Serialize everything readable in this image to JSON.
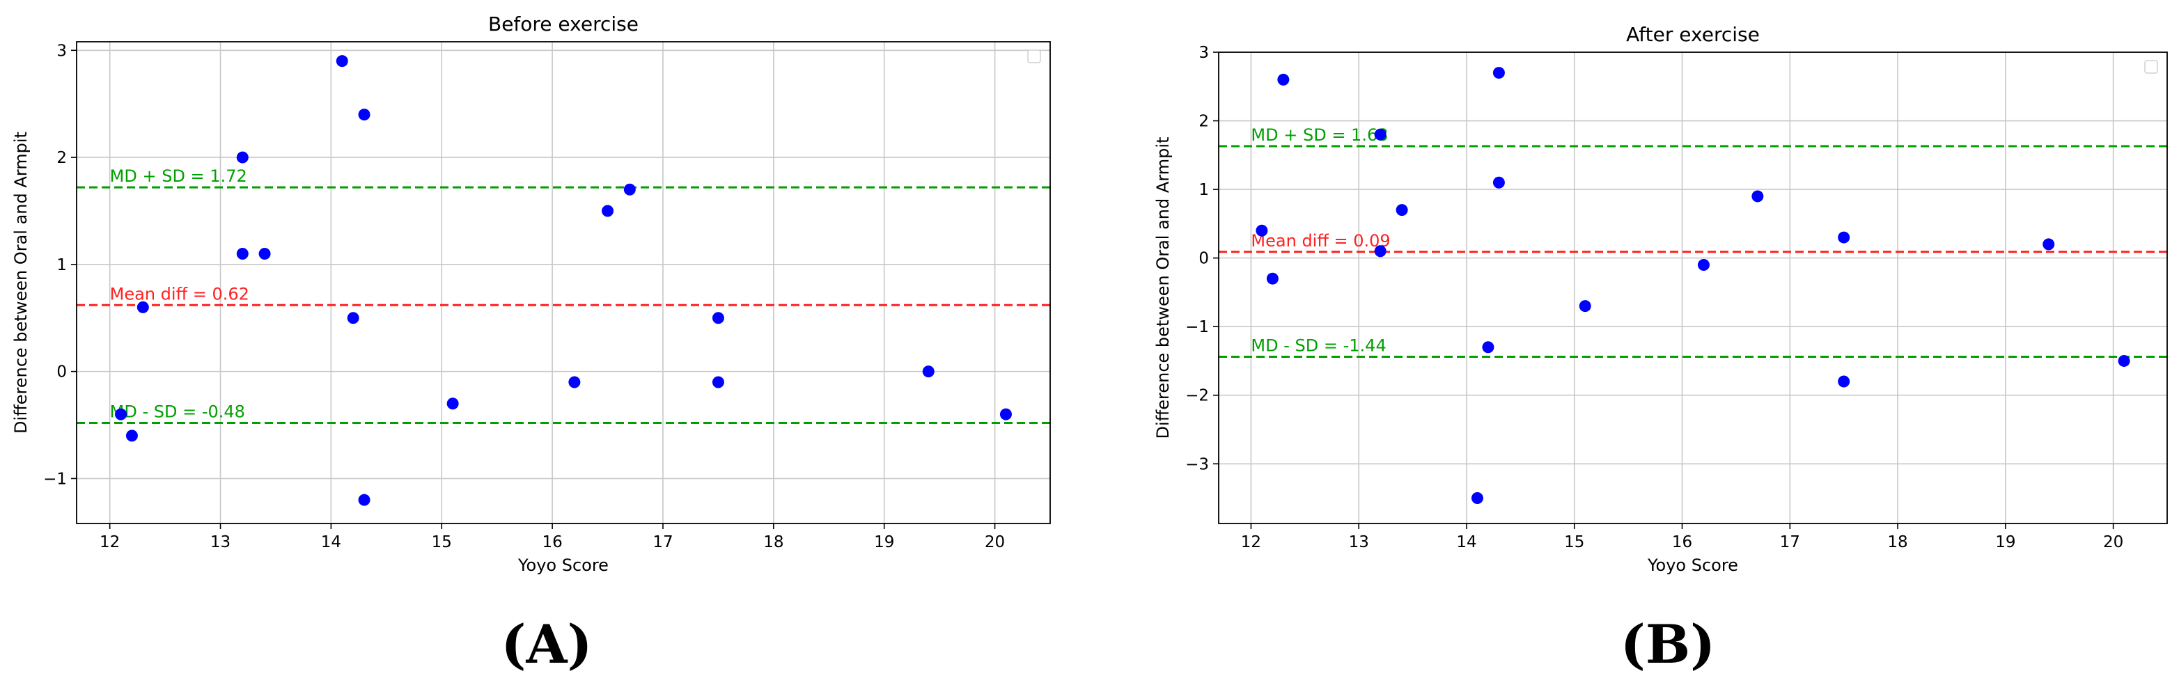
{
  "chart_data": [
    {
      "type": "scatter",
      "panel_label": "(A)",
      "title": "Before exercise",
      "xlabel": "Yoyo Score",
      "ylabel": "Difference between Oral and Armpit",
      "xlim": [
        11.7,
        20.5
      ],
      "ylim": [
        -1.42,
        3.08
      ],
      "xticks": [
        12,
        13,
        14,
        15,
        16,
        17,
        18,
        19,
        20
      ],
      "yticks": [
        -1,
        0,
        1,
        2,
        3
      ],
      "ytick_labels": [
        "−1",
        "0",
        "1",
        "2",
        "3"
      ],
      "grid": true,
      "legend": "top-right (empty)",
      "point_color": "#0000ff",
      "points": [
        {
          "x": 12.1,
          "y": -0.4
        },
        {
          "x": 12.2,
          "y": -0.6
        },
        {
          "x": 12.3,
          "y": 0.6
        },
        {
          "x": 13.2,
          "y": 2.0
        },
        {
          "x": 13.2,
          "y": 1.1
        },
        {
          "x": 13.4,
          "y": 1.1
        },
        {
          "x": 14.1,
          "y": 2.9
        },
        {
          "x": 14.2,
          "y": 0.5
        },
        {
          "x": 14.3,
          "y": 2.4
        },
        {
          "x": 14.3,
          "y": -1.2
        },
        {
          "x": 15.1,
          "y": -0.3
        },
        {
          "x": 16.2,
          "y": -0.1
        },
        {
          "x": 16.5,
          "y": 1.5
        },
        {
          "x": 16.7,
          "y": 1.7
        },
        {
          "x": 17.5,
          "y": 0.5
        },
        {
          "x": 17.5,
          "y": -0.1
        },
        {
          "x": 19.4,
          "y": 0.0
        },
        {
          "x": 20.1,
          "y": -0.4
        }
      ],
      "reference_lines": [
        {
          "label": "MD + SD = 1.72",
          "y": 1.72,
          "color": "#00a000"
        },
        {
          "label": "Mean diff = 0.62",
          "y": 0.62,
          "color": "#ff2020"
        },
        {
          "label": "MD - SD = -0.48",
          "y": -0.48,
          "color": "#00a000"
        }
      ]
    },
    {
      "type": "scatter",
      "panel_label": "(B)",
      "title": "After exercise",
      "xlabel": "Yoyo Score",
      "ylabel": "Difference between Oral and Armpit",
      "xlim": [
        11.7,
        20.5
      ],
      "ylim": [
        -3.87,
        3.0
      ],
      "xticks": [
        12,
        13,
        14,
        15,
        16,
        17,
        18,
        19,
        20
      ],
      "yticks": [
        -3,
        -2,
        -1,
        0,
        1,
        2,
        3
      ],
      "ytick_labels": [
        "−3",
        "−2",
        "−1",
        "0",
        "1",
        "2",
        "3"
      ],
      "grid": true,
      "legend": "top-right (empty)",
      "point_color": "#0000ff",
      "points": [
        {
          "x": 12.1,
          "y": 0.4
        },
        {
          "x": 12.2,
          "y": -0.3
        },
        {
          "x": 12.3,
          "y": 2.6
        },
        {
          "x": 13.2,
          "y": 1.8
        },
        {
          "x": 13.2,
          "y": 0.1
        },
        {
          "x": 13.4,
          "y": 0.7
        },
        {
          "x": 14.1,
          "y": -3.5
        },
        {
          "x": 14.2,
          "y": -1.3
        },
        {
          "x": 14.3,
          "y": 2.7
        },
        {
          "x": 14.3,
          "y": 1.1
        },
        {
          "x": 15.1,
          "y": -0.7
        },
        {
          "x": 16.2,
          "y": -0.1
        },
        {
          "x": 16.7,
          "y": 0.9
        },
        {
          "x": 17.5,
          "y": 0.3
        },
        {
          "x": 17.5,
          "y": -1.8
        },
        {
          "x": 19.4,
          "y": 0.2
        },
        {
          "x": 20.1,
          "y": -1.5
        }
      ],
      "reference_lines": [
        {
          "label": "MD + SD = 1.63",
          "y": 1.63,
          "color": "#00a000"
        },
        {
          "label": "Mean diff = 0.09",
          "y": 0.09,
          "color": "#ff2020"
        },
        {
          "label": "MD - SD = -1.44",
          "y": -1.44,
          "color": "#00a000"
        }
      ]
    }
  ]
}
